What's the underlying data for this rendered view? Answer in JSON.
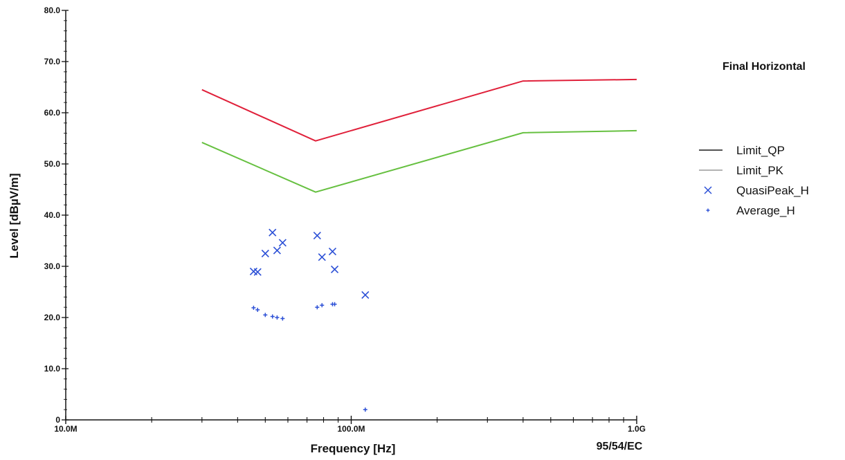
{
  "chart_data": {
    "type": "line",
    "title": "Final Horizontal",
    "xlabel": "Frequency [Hz]",
    "ylabel": "Level [dBµV/m]",
    "standard": "95/54/EC",
    "x_scale": "log",
    "xlim": [
      10000000,
      1000000000
    ],
    "ylim": [
      0,
      80
    ],
    "x_tick_labels": [
      {
        "value": 10000000,
        "label": "10.0M"
      },
      {
        "value": 100000000,
        "label": "100.0M"
      },
      {
        "value": 1000000000,
        "label": "1.0G"
      }
    ],
    "y_ticks": [
      0,
      10,
      20,
      30,
      40,
      50,
      60,
      70,
      80
    ],
    "y_tick_labels": [
      "0",
      "10.0",
      "20.0",
      "30.0",
      "40.0",
      "50.0",
      "60.0",
      "70.0",
      "80.0"
    ],
    "legend": {
      "placement": "right",
      "entries": [
        {
          "name": "Limit_QP",
          "style": "line",
          "color": "#1a1a1a"
        },
        {
          "name": "Limit_PK",
          "style": "line",
          "color": "#9a9a9a"
        },
        {
          "name": "QuasiPeak_H",
          "style": "x",
          "color": "#2b4fd6"
        },
        {
          "name": "Average_H",
          "style": "plus",
          "color": "#2b4fd6"
        }
      ]
    },
    "series": [
      {
        "name": "Limit_QP",
        "kind": "line",
        "color": "#e0203a",
        "x": [
          30000000,
          75000000,
          400000000,
          1000000000
        ],
        "y": [
          64.5,
          54.5,
          66.2,
          66.5
        ]
      },
      {
        "name": "Limit_PK",
        "kind": "line",
        "color": "#66c040",
        "x": [
          30000000,
          75000000,
          400000000,
          1000000000
        ],
        "y": [
          54.2,
          44.5,
          56.1,
          56.5
        ]
      },
      {
        "name": "QuasiPeak_H",
        "kind": "x",
        "color": "#2b4fd6",
        "points": [
          {
            "x": 45500000,
            "y": 29.0
          },
          {
            "x": 47000000,
            "y": 28.9
          },
          {
            "x": 50000000,
            "y": 32.5
          },
          {
            "x": 53000000,
            "y": 36.6
          },
          {
            "x": 55000000,
            "y": 33.1
          },
          {
            "x": 57500000,
            "y": 34.6
          },
          {
            "x": 76000000,
            "y": 36.0
          },
          {
            "x": 79000000,
            "y": 31.8
          },
          {
            "x": 86000000,
            "y": 32.9
          },
          {
            "x": 87500000,
            "y": 29.4
          },
          {
            "x": 112000000,
            "y": 24.4
          }
        ]
      },
      {
        "name": "Average_H",
        "kind": "plus",
        "color": "#2b4fd6",
        "points": [
          {
            "x": 45500000,
            "y": 21.9
          },
          {
            "x": 47000000,
            "y": 21.5
          },
          {
            "x": 50000000,
            "y": 20.5
          },
          {
            "x": 53000000,
            "y": 20.2
          },
          {
            "x": 55000000,
            "y": 20.0
          },
          {
            "x": 57500000,
            "y": 19.8
          },
          {
            "x": 76000000,
            "y": 22.0
          },
          {
            "x": 79000000,
            "y": 22.4
          },
          {
            "x": 86000000,
            "y": 22.6
          },
          {
            "x": 87500000,
            "y": 22.6
          },
          {
            "x": 112000000,
            "y": 2.0
          }
        ]
      }
    ]
  }
}
